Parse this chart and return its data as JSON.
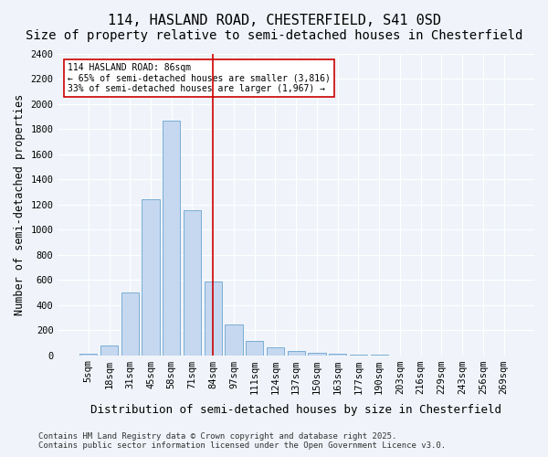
{
  "title": "114, HASLAND ROAD, CHESTERFIELD, S41 0SD",
  "subtitle": "Size of property relative to semi-detached houses in Chesterfield",
  "xlabel": "Distribution of semi-detached houses by size in Chesterfield",
  "ylabel": "Number of semi-detached properties",
  "categories": [
    "5sqm",
    "18sqm",
    "31sqm",
    "45sqm",
    "58sqm",
    "71sqm",
    "84sqm",
    "97sqm",
    "111sqm",
    "124sqm",
    "137sqm",
    "150sqm",
    "163sqm",
    "177sqm",
    "190sqm",
    "203sqm",
    "216sqm",
    "229sqm",
    "243sqm",
    "256sqm",
    "269sqm"
  ],
  "values": [
    10,
    75,
    500,
    1240,
    1870,
    1155,
    585,
    245,
    115,
    65,
    35,
    18,
    8,
    3,
    3,
    0,
    0,
    0,
    0,
    0,
    0
  ],
  "bar_color": "#c5d8f0",
  "bar_edge_color": "#7aadd4",
  "vline_x": 6,
  "vline_color": "#cc0000",
  "annotation_text": "114 HASLAND ROAD: 86sqm\n← 65% of semi-detached houses are smaller (3,816)\n33% of semi-detached houses are larger (1,967) →",
  "annotation_box_color": "#ffffff",
  "annotation_box_edge": "#cc0000",
  "ylim": [
    0,
    2400
  ],
  "yticks": [
    0,
    200,
    400,
    600,
    800,
    1000,
    1200,
    1400,
    1600,
    1800,
    2000,
    2200,
    2400
  ],
  "footer_line1": "Contains HM Land Registry data © Crown copyright and database right 2025.",
  "footer_line2": "Contains public sector information licensed under the Open Government Licence v3.0.",
  "bg_color": "#f0f4fa",
  "grid_color": "#ffffff",
  "title_fontsize": 11,
  "subtitle_fontsize": 10,
  "axis_fontsize": 8.5,
  "tick_fontsize": 7.5,
  "footer_fontsize": 6.5
}
